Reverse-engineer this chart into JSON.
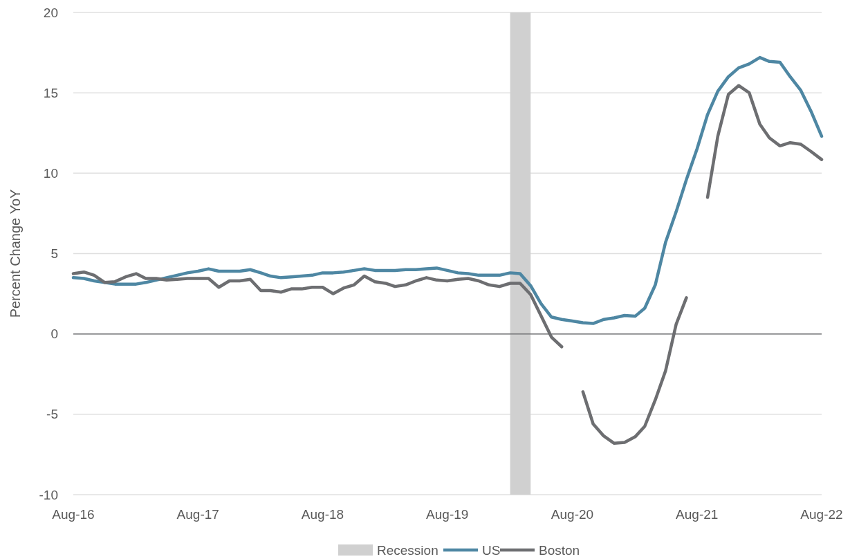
{
  "chart_data": {
    "type": "line",
    "ylabel": "Percent Change YoY",
    "x": [
      "2016-08",
      "2016-09",
      "2016-10",
      "2016-11",
      "2016-12",
      "2017-01",
      "2017-02",
      "2017-03",
      "2017-04",
      "2017-05",
      "2017-06",
      "2017-07",
      "2017-08",
      "2017-09",
      "2017-10",
      "2017-11",
      "2017-12",
      "2018-01",
      "2018-02",
      "2018-03",
      "2018-04",
      "2018-05",
      "2018-06",
      "2018-07",
      "2018-08",
      "2018-09",
      "2018-10",
      "2018-11",
      "2018-12",
      "2019-01",
      "2019-02",
      "2019-03",
      "2019-04",
      "2019-05",
      "2019-06",
      "2019-07",
      "2019-08",
      "2019-09",
      "2019-10",
      "2019-11",
      "2019-12",
      "2020-01",
      "2020-02",
      "2020-03",
      "2020-04",
      "2020-05",
      "2020-06",
      "2020-07",
      "2020-08",
      "2020-09",
      "2020-10",
      "2020-11",
      "2020-12",
      "2021-01",
      "2021-02",
      "2021-03",
      "2021-04",
      "2021-05",
      "2021-06",
      "2021-07",
      "2021-08",
      "2021-09",
      "2021-10",
      "2021-11",
      "2021-12",
      "2022-01",
      "2022-02",
      "2022-03",
      "2022-04",
      "2022-05",
      "2022-06",
      "2022-07",
      "2022-08"
    ],
    "series": [
      {
        "name": "US",
        "color": "#4e87a3",
        "values": [
          3.5,
          3.45,
          3.3,
          3.2,
          3.1,
          3.1,
          3.1,
          3.2,
          3.35,
          3.5,
          3.65,
          3.8,
          3.9,
          4.05,
          3.9,
          3.9,
          3.9,
          4.0,
          3.8,
          3.6,
          3.5,
          3.55,
          3.6,
          3.65,
          3.8,
          3.8,
          3.85,
          3.95,
          4.05,
          3.95,
          3.95,
          3.95,
          4.0,
          4.0,
          4.05,
          4.1,
          3.95,
          3.8,
          3.75,
          3.65,
          3.65,
          3.65,
          3.8,
          3.75,
          3.0,
          1.9,
          1.05,
          0.9,
          0.8,
          0.7,
          0.65,
          0.9,
          1.0,
          1.15,
          1.1,
          1.6,
          3.05,
          5.7,
          7.6,
          9.6,
          11.5,
          13.65,
          15.1,
          16.0,
          16.55,
          16.8,
          17.2,
          16.95,
          16.9,
          16.0,
          15.15,
          13.85,
          12.3
        ]
      },
      {
        "name": "Boston",
        "color": "#6d6e71",
        "values": [
          3.75,
          3.85,
          3.65,
          3.2,
          3.25,
          3.55,
          3.75,
          3.45,
          3.45,
          3.35,
          3.4,
          3.45,
          3.45,
          3.45,
          2.9,
          3.3,
          3.3,
          3.4,
          2.7,
          2.7,
          2.6,
          2.8,
          2.8,
          2.9,
          2.9,
          2.5,
          2.85,
          3.05,
          3.6,
          3.25,
          3.15,
          2.95,
          3.05,
          3.3,
          3.5,
          3.35,
          3.3,
          3.4,
          3.45,
          3.3,
          3.05,
          2.95,
          3.15,
          3.15,
          2.45,
          1.15,
          -0.2,
          -0.8,
          null,
          -3.6,
          -5.6,
          -6.35,
          -6.8,
          -6.75,
          -6.4,
          -5.75,
          -4.1,
          -2.3,
          0.6,
          2.25,
          null,
          8.5,
          12.3,
          14.9,
          15.45,
          15.0,
          13.05,
          12.2,
          11.7,
          11.9,
          11.8,
          11.35,
          10.85
        ]
      }
    ],
    "xlim": [
      "2016-08",
      "2022-08"
    ],
    "xticks": [
      {
        "value": "2016-08",
        "label": "Aug-16"
      },
      {
        "value": "2017-08",
        "label": "Aug-17"
      },
      {
        "value": "2018-08",
        "label": "Aug-18"
      },
      {
        "value": "2019-08",
        "label": "Aug-19"
      },
      {
        "value": "2020-08",
        "label": "Aug-20"
      },
      {
        "value": "2021-08",
        "label": "Aug-21"
      },
      {
        "value": "2022-08",
        "label": "Aug-22"
      }
    ],
    "ylim": [
      -10,
      20
    ],
    "yticks": [
      -10,
      -5,
      0,
      5,
      10,
      15,
      20
    ],
    "bands": [
      {
        "axis": "x",
        "from": "2020-02",
        "to": "2020-04",
        "label": "Recession",
        "color": "#d0d0d0"
      }
    ],
    "grid": "y",
    "legend": "bottom",
    "line_style": "solid",
    "marker": "none"
  }
}
